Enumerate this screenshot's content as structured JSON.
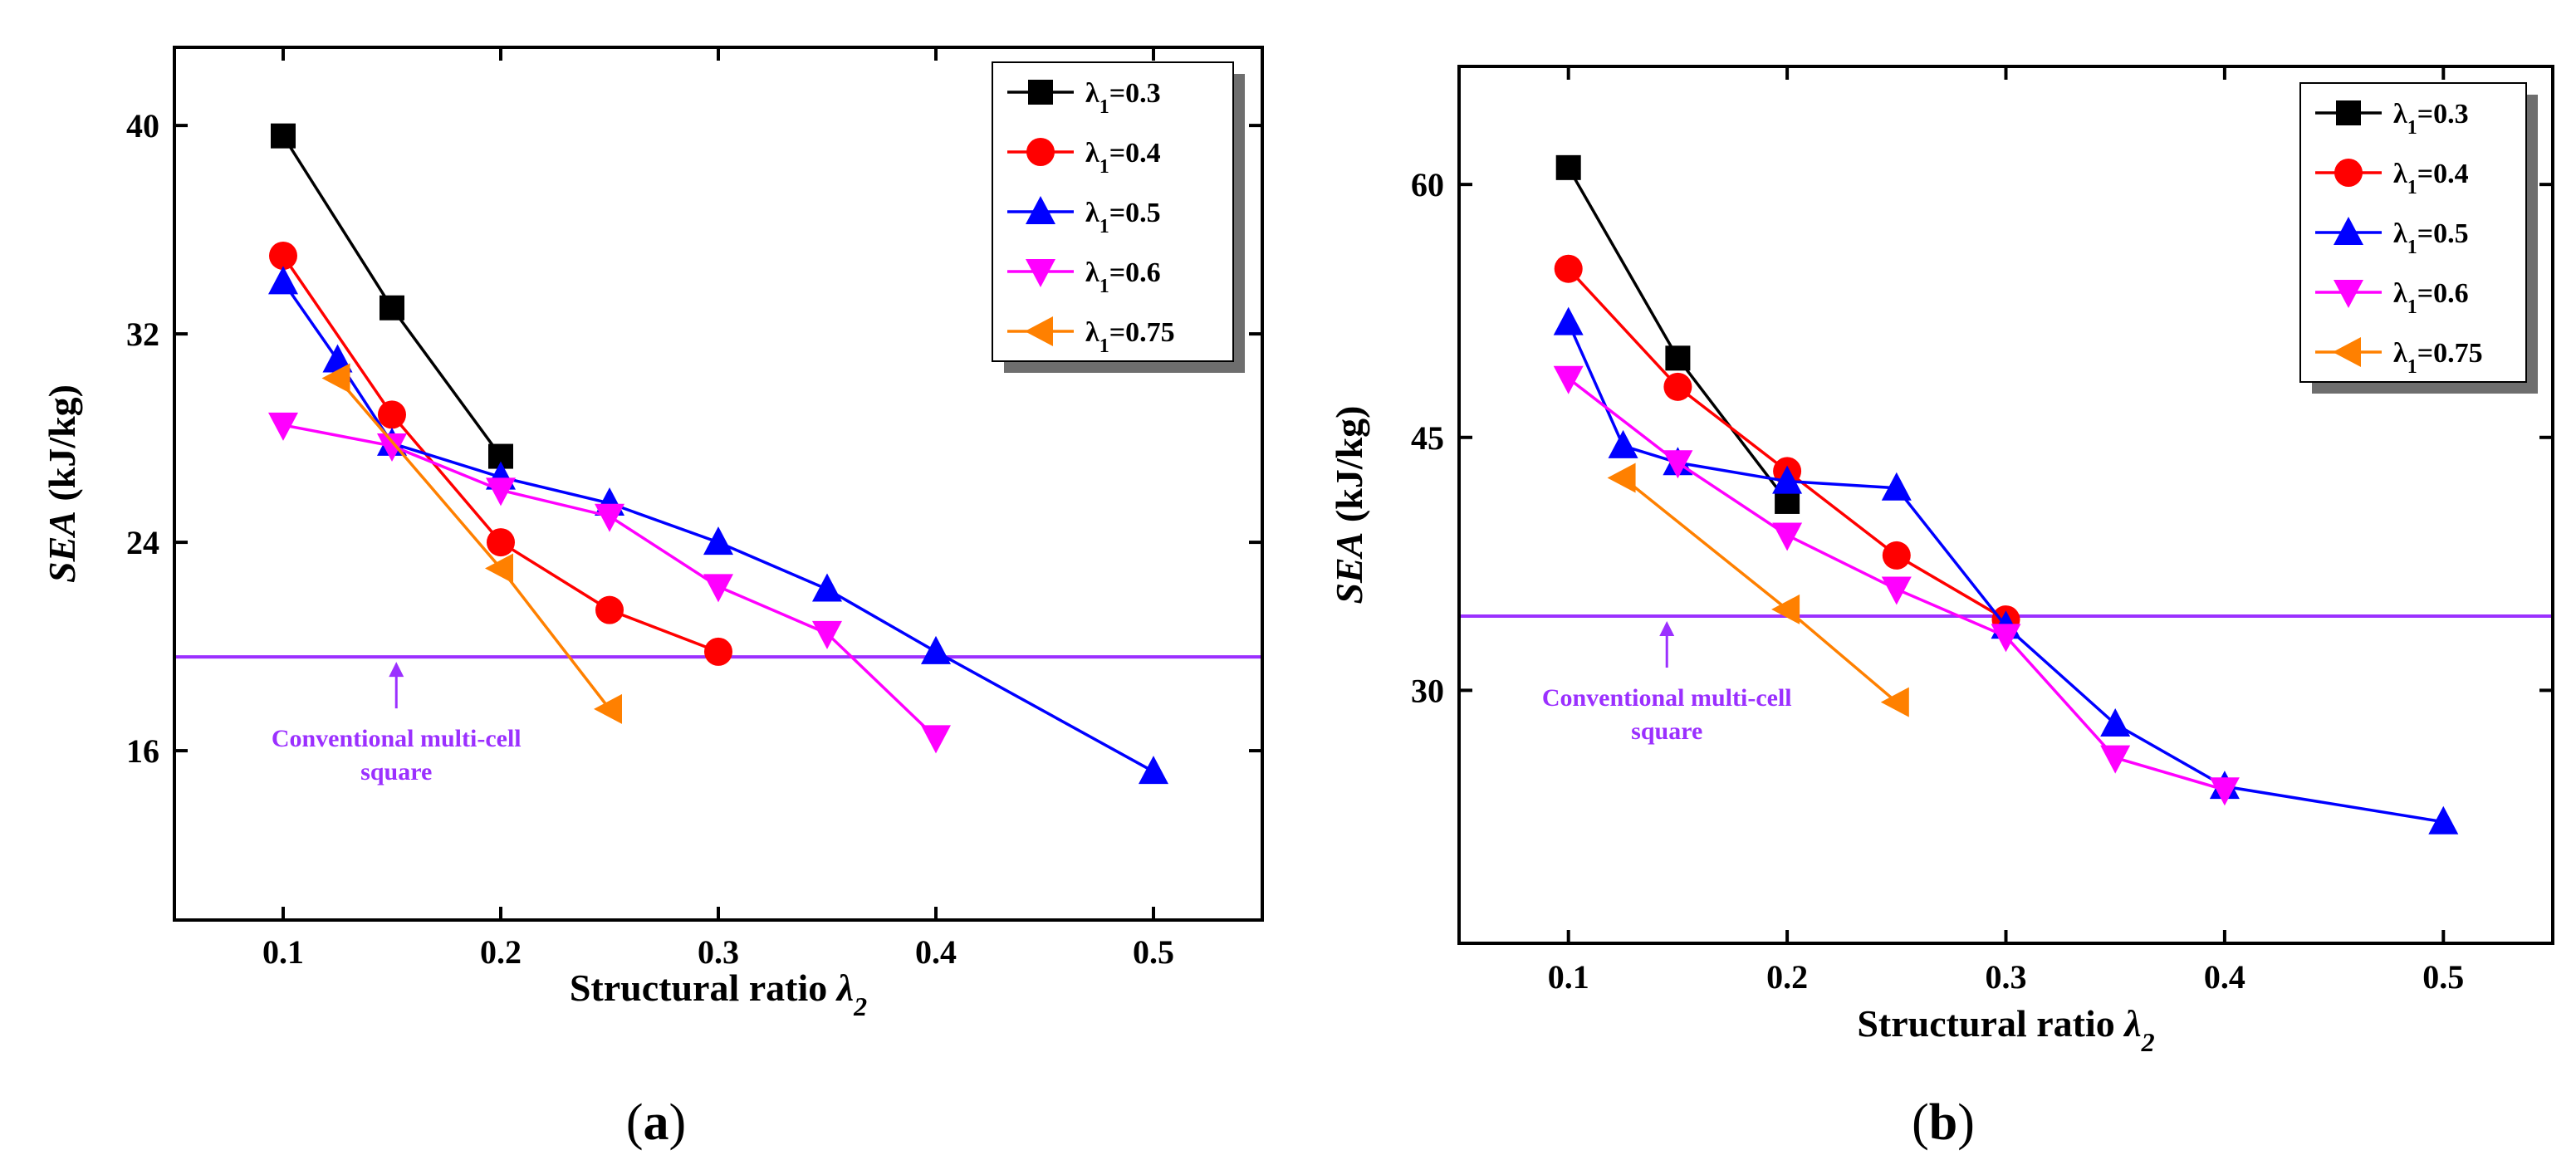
{
  "figure": {
    "captions": [
      "(a)",
      "(b)"
    ]
  },
  "chart_data": [
    {
      "type": "line",
      "panel_label": "a",
      "ylabel_italic": "SEA",
      "ylabel_unit": " (kJ/kg)",
      "xlabel_text": "Structural ratio ",
      "xlabel_symbol": "λ",
      "xlabel_sub": "2",
      "xlim": [
        0.05,
        0.55
      ],
      "ylim": [
        9.5,
        43
      ],
      "xticks": [
        0.1,
        0.2,
        0.3,
        0.4,
        0.5
      ],
      "yticks": [
        16,
        24,
        32,
        40
      ],
      "grid": false,
      "legend_position": "top-right",
      "series": [
        {
          "name": "λ1=0.3",
          "name_sym": "λ",
          "name_sub": "1",
          "name_rest": "=0.3",
          "color": "#000000",
          "marker": "square",
          "x": [
            0.1,
            0.15,
            0.2
          ],
          "y": [
            39.6,
            33.0,
            27.3
          ]
        },
        {
          "name": "λ1=0.4",
          "name_sym": "λ",
          "name_sub": "1",
          "name_rest": "=0.4",
          "color": "#FF0000",
          "marker": "circle",
          "x": [
            0.1,
            0.15,
            0.2,
            0.25,
            0.3
          ],
          "y": [
            35.0,
            28.9,
            24.0,
            21.4,
            19.8
          ]
        },
        {
          "name": "λ1=0.5",
          "name_sym": "λ",
          "name_sub": "1",
          "name_rest": "=0.5",
          "color": "#0000FF",
          "marker": "triangle-up",
          "x": [
            0.1,
            0.125,
            0.15,
            0.2,
            0.25,
            0.3,
            0.35,
            0.4,
            0.5
          ],
          "y": [
            34.0,
            31.0,
            27.8,
            26.5,
            25.5,
            24.0,
            22.2,
            19.8,
            15.2
          ]
        },
        {
          "name": "λ1=0.6",
          "name_sym": "λ",
          "name_sub": "1",
          "name_rest": "=0.6",
          "color": "#FF00FF",
          "marker": "triangle-down",
          "x": [
            0.1,
            0.15,
            0.2,
            0.25,
            0.3,
            0.35,
            0.4
          ],
          "y": [
            28.5,
            27.7,
            26.0,
            25.0,
            22.3,
            20.5,
            16.5
          ]
        },
        {
          "name": "λ1=0.75",
          "name_sym": "λ",
          "name_sub": "1",
          "name_rest": "=0.75",
          "color": "#FF8000",
          "marker": "triangle-left",
          "x": [
            0.125,
            0.2,
            0.25
          ],
          "y": [
            30.3,
            23.0,
            17.6
          ]
        }
      ],
      "reference_line": {
        "y": 19.6,
        "color": "#9B30FF",
        "label_line1": "Conventional multi-cell",
        "label_line2": "square",
        "arrow_x": 0.152
      }
    },
    {
      "type": "line",
      "panel_label": "b",
      "ylabel_italic": "SEA",
      "ylabel_unit": " (kJ/kg)",
      "xlabel_text": "Structural ratio ",
      "xlabel_symbol": "λ",
      "xlabel_sub": "2",
      "xlim": [
        0.05,
        0.55
      ],
      "ylim": [
        15,
        67
      ],
      "xticks": [
        0.1,
        0.2,
        0.3,
        0.4,
        0.5
      ],
      "yticks": [
        30,
        45,
        60
      ],
      "grid": false,
      "legend_position": "top-right",
      "series": [
        {
          "name": "λ1=0.3",
          "name_sym": "λ",
          "name_sub": "1",
          "name_rest": "=0.3",
          "color": "#000000",
          "marker": "square",
          "x": [
            0.1,
            0.15,
            0.2
          ],
          "y": [
            61.0,
            49.7,
            41.2
          ]
        },
        {
          "name": "λ1=0.4",
          "name_sym": "λ",
          "name_sub": "1",
          "name_rest": "=0.4",
          "color": "#FF0000",
          "marker": "circle",
          "x": [
            0.1,
            0.15,
            0.2,
            0.25,
            0.3
          ],
          "y": [
            55.0,
            48.0,
            43.0,
            38.0,
            34.2
          ]
        },
        {
          "name": "λ1=0.5",
          "name_sym": "λ",
          "name_sub": "1",
          "name_rest": "=0.5",
          "color": "#0000FF",
          "marker": "triangle-up",
          "x": [
            0.1,
            0.125,
            0.15,
            0.2,
            0.25,
            0.3,
            0.35,
            0.4,
            0.5
          ],
          "y": [
            51.8,
            44.5,
            43.5,
            42.4,
            42.0,
            33.8,
            28.0,
            24.3,
            22.2
          ]
        },
        {
          "name": "λ1=0.6",
          "name_sym": "λ",
          "name_sub": "1",
          "name_rest": "=0.6",
          "color": "#FF00FF",
          "marker": "triangle-down",
          "x": [
            0.1,
            0.15,
            0.2,
            0.25,
            0.3,
            0.35,
            0.4
          ],
          "y": [
            48.5,
            43.5,
            39.2,
            36.0,
            33.2,
            26.0,
            24.1
          ]
        },
        {
          "name": "λ1=0.75",
          "name_sym": "λ",
          "name_sub": "1",
          "name_rest": "=0.75",
          "color": "#FF8000",
          "marker": "triangle-left",
          "x": [
            0.125,
            0.2,
            0.25
          ],
          "y": [
            42.6,
            34.8,
            29.3
          ]
        }
      ],
      "reference_line": {
        "y": 34.4,
        "color": "#9B30FF",
        "label_line1": "Conventional multi-cell",
        "label_line2": "square",
        "arrow_x": 0.145
      }
    }
  ]
}
